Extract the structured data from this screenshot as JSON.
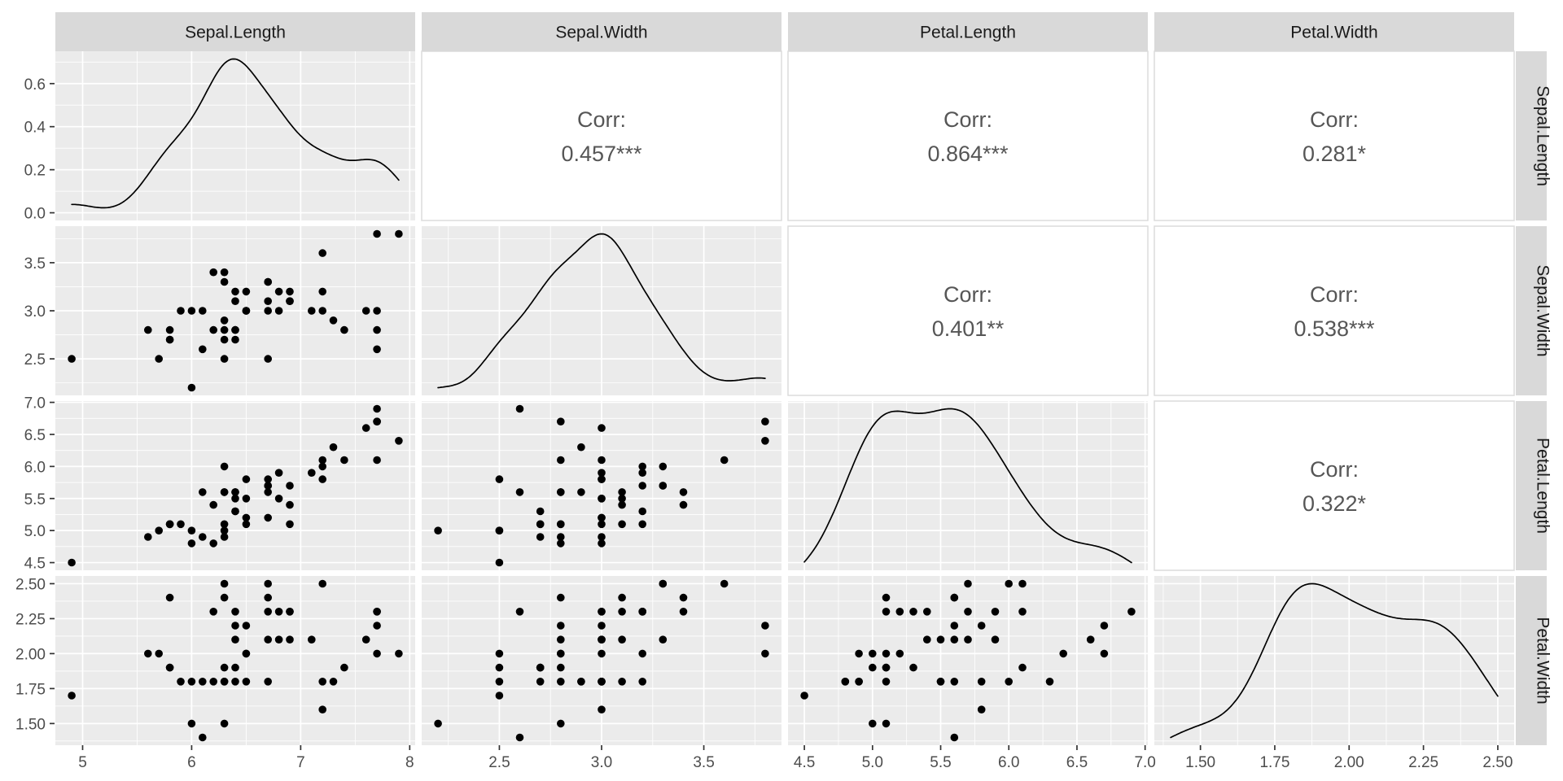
{
  "figure": {
    "kind": "ggpairs scatterplot matrix",
    "colors": {
      "background": "#ffffff",
      "panel_bg": "#ebebeb",
      "strip_bg": "#d9d9d9",
      "grid": "#ffffff",
      "point": "#000000",
      "density_line": "#000000",
      "tick_mark": "#333333",
      "tick_label": "#4d4d4d",
      "strip_text": "#1a1a1a",
      "corr_text": "#565656",
      "corr_panel_bg": "#ffffff",
      "corr_panel_border": "#dcdcdc"
    }
  },
  "chart_data": {
    "type": "scatter",
    "subtype": "pairs-matrix",
    "matrix_layout": {
      "diagonal": "density",
      "lower_triangle": "scatter",
      "upper_triangle": "correlation"
    },
    "variables": [
      "Sepal.Length",
      "Sepal.Width",
      "Petal.Length",
      "Petal.Width"
    ],
    "top_strip_labels": [
      "Sepal.Length",
      "Sepal.Width",
      "Petal.Length",
      "Petal.Width"
    ],
    "right_strip_labels": [
      "Sepal.Length",
      "Sepal.Width",
      "Petal.Length",
      "Petal.Width"
    ],
    "n_points": 50,
    "observations": {
      "Sepal.Length": [
        6.3,
        5.8,
        7.1,
        6.3,
        6.5,
        7.6,
        4.9,
        7.3,
        6.7,
        7.2,
        6.5,
        6.4,
        6.8,
        5.7,
        5.8,
        6.4,
        6.5,
        7.7,
        7.7,
        6.0,
        6.9,
        5.6,
        7.7,
        6.3,
        6.7,
        7.2,
        6.2,
        6.1,
        6.4,
        7.2,
        7.4,
        7.9,
        6.4,
        6.3,
        6.1,
        7.7,
        6.3,
        6.4,
        6.0,
        6.9,
        6.7,
        6.9,
        5.8,
        6.8,
        6.7,
        6.7,
        6.3,
        6.5,
        6.2,
        5.9
      ],
      "Sepal.Width": [
        3.3,
        2.7,
        3.0,
        2.9,
        3.0,
        3.0,
        2.5,
        2.9,
        2.5,
        3.6,
        3.2,
        2.7,
        3.0,
        2.5,
        2.8,
        3.2,
        3.0,
        3.8,
        2.6,
        2.2,
        3.2,
        2.8,
        2.8,
        2.7,
        3.3,
        3.2,
        2.8,
        3.0,
        2.8,
        3.0,
        2.8,
        3.8,
        2.8,
        2.8,
        2.6,
        3.0,
        3.4,
        3.1,
        3.0,
        3.1,
        3.1,
        3.1,
        2.7,
        3.2,
        3.3,
        3.0,
        2.5,
        3.0,
        3.4,
        3.0
      ],
      "Petal.Length": [
        6.0,
        5.1,
        5.9,
        5.6,
        5.8,
        6.6,
        4.5,
        6.3,
        5.8,
        6.1,
        5.1,
        5.3,
        5.5,
        5.0,
        5.1,
        5.3,
        5.5,
        6.7,
        6.9,
        5.0,
        5.7,
        4.9,
        6.7,
        4.9,
        5.7,
        6.0,
        4.8,
        4.9,
        5.6,
        5.8,
        6.1,
        6.4,
        5.6,
        5.1,
        5.6,
        6.1,
        5.6,
        5.5,
        4.8,
        5.4,
        5.6,
        5.1,
        5.1,
        5.9,
        5.7,
        5.2,
        5.0,
        5.2,
        5.4,
        5.1
      ],
      "Petal.Width": [
        2.5,
        1.9,
        2.1,
        1.8,
        2.2,
        2.1,
        1.7,
        1.8,
        1.8,
        2.5,
        2.0,
        1.9,
        2.1,
        2.0,
        2.4,
        2.3,
        1.8,
        2.2,
        2.3,
        1.5,
        2.3,
        2.0,
        2.0,
        1.8,
        2.1,
        1.8,
        1.8,
        1.8,
        2.1,
        1.6,
        1.9,
        2.0,
        2.2,
        1.5,
        1.4,
        2.3,
        2.4,
        1.8,
        1.8,
        2.1,
        2.4,
        2.3,
        1.9,
        2.3,
        2.5,
        2.3,
        1.9,
        2.0,
        2.3,
        1.8
      ]
    },
    "axes": {
      "Sepal.Length": {
        "limits": [
          4.75,
          8.05
        ],
        "major": [
          5,
          6,
          7,
          8
        ],
        "minor": [
          4.5,
          5.5,
          6.5,
          7.5
        ],
        "labels": [
          "5",
          "6",
          "7",
          "8"
        ]
      },
      "Sepal.Width": {
        "limits": [
          2.12,
          3.88
        ],
        "major": [
          2.5,
          3.0,
          3.5
        ],
        "minor": [
          2.25,
          2.75,
          3.25,
          3.75
        ],
        "labels": [
          "2.5",
          "3.0",
          "3.5"
        ]
      },
      "Petal.Length": {
        "limits": [
          4.38,
          7.02
        ],
        "major": [
          4.5,
          5.0,
          5.5,
          6.0,
          6.5,
          7.0
        ],
        "minor": [
          4.25,
          4.75,
          5.25,
          5.75,
          6.25,
          6.75,
          7.25
        ],
        "labels": [
          "4.5",
          "5.0",
          "5.5",
          "6.0",
          "6.5",
          "7.0"
        ]
      },
      "Petal.Width": {
        "limits": [
          1.345,
          2.555
        ],
        "major": [
          1.5,
          1.75,
          2.0,
          2.25,
          2.5
        ],
        "minor": [
          1.375,
          1.625,
          1.875,
          2.125,
          2.375
        ],
        "labels": [
          "1.50",
          "1.75",
          "2.00",
          "2.25",
          "2.50"
        ]
      }
    },
    "density_axis": {
      "major": [
        0.0,
        0.2,
        0.4,
        0.6
      ],
      "minor": [
        0.1,
        0.3,
        0.5,
        0.7
      ],
      "labels": [
        "0.0",
        "0.2",
        "0.4",
        "0.6"
      ]
    },
    "correlations": {
      "prefix": "Corr:",
      "cells": [
        {
          "row": 0,
          "col": 1,
          "value": "0.457***"
        },
        {
          "row": 0,
          "col": 2,
          "value": "0.864***"
        },
        {
          "row": 0,
          "col": 3,
          "value": "0.281*"
        },
        {
          "row": 1,
          "col": 2,
          "value": "0.401**"
        },
        {
          "row": 1,
          "col": 3,
          "value": "0.538***"
        },
        {
          "row": 2,
          "col": 3,
          "value": "0.322*"
        }
      ]
    }
  }
}
